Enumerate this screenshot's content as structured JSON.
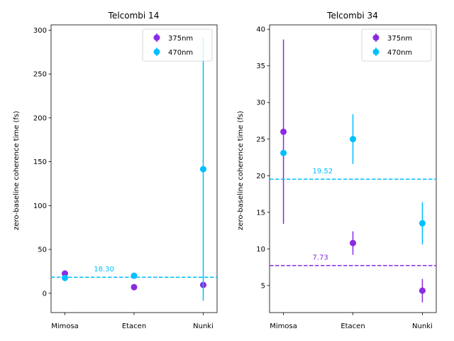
{
  "chart_data": [
    {
      "type": "scatter",
      "title": "Telcombi 14",
      "xlabel": "",
      "ylabel": "zero-baseline coherence time (fs)",
      "categories": [
        "Mimosa",
        "Etacen",
        "Nunki"
      ],
      "ylim": [
        -22,
        306
      ],
      "yticks": [
        0,
        50,
        100,
        150,
        200,
        250,
        300
      ],
      "legend_position": "top-right",
      "series": [
        {
          "name": "375nm",
          "color": "#8a2be2",
          "values": [
            22.5,
            7.0,
            9.5
          ],
          "errors": [
            0,
            0,
            0
          ]
        },
        {
          "name": "470nm",
          "color": "#00bfff",
          "values": [
            17.5,
            20.0,
            141.5
          ],
          "errors": [
            0,
            0,
            150
          ]
        }
      ],
      "hlines": [
        {
          "y": 18.3,
          "color": "#00bfff",
          "label": "18.30"
        }
      ]
    },
    {
      "type": "scatter",
      "title": "Telcombi 34",
      "xlabel": "",
      "ylabel": "zero-baseline coherence time (fs)",
      "categories": [
        "Mimosa",
        "Etacen",
        "Nunki"
      ],
      "ylim": [
        1.3,
        40.6
      ],
      "yticks": [
        5,
        10,
        15,
        20,
        25,
        30,
        35,
        40
      ],
      "legend_position": "top-right",
      "series": [
        {
          "name": "375nm",
          "color": "#8a2be2",
          "values": [
            26.0,
            10.8,
            4.3
          ],
          "errors": [
            12.6,
            1.6,
            1.6
          ]
        },
        {
          "name": "470nm",
          "color": "#00bfff",
          "values": [
            23.1,
            25.0,
            13.5
          ],
          "errors": [
            0,
            3.4,
            2.9
          ]
        }
      ],
      "hlines": [
        {
          "y": 19.52,
          "color": "#00bfff",
          "label": "19.52"
        },
        {
          "y": 7.73,
          "color": "#8a2be2",
          "label": "7.73"
        }
      ]
    }
  ]
}
